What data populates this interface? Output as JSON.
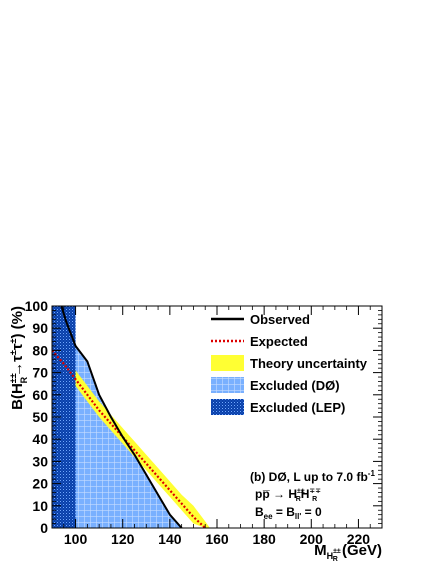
{
  "chart_data": {
    "type": "line",
    "xlabel": "M",
    "xlabel_subscript": "H",
    "xlabel_subscript2": "R",
    "xlabel_subsup": "±±",
    "xlabel_unit": " (GeV)",
    "ylabel": "B(H",
    "ylabel_sup": "±±",
    "ylabel_sub": "R",
    "ylabel_rest": "→τ",
    "ylabel_sup2": "±",
    "ylabel_rest2": "τ",
    "ylabel_sup3": "±",
    "ylabel_end": ") (%)",
    "xlim": [
      90,
      230
    ],
    "ylim": [
      0,
      100
    ],
    "x_ticks": [
      100,
      120,
      140,
      160,
      180,
      200,
      220
    ],
    "y_ticks": [
      0,
      10,
      20,
      30,
      40,
      50,
      60,
      70,
      80,
      90,
      100
    ],
    "grid": true,
    "legend_position": "top-right",
    "colors": {
      "observed": "#000000",
      "expected": "#dd0000",
      "theory_band": "#ffff33",
      "excluded_d0": "#6fa8ff",
      "excluded_lep": "#0a3fa8"
    },
    "legend": [
      {
        "label": "Observed",
        "kind": "line"
      },
      {
        "label": "Expected",
        "kind": "dotted"
      },
      {
        "label": "Theory uncertainty",
        "kind": "fill-yellow"
      },
      {
        "label": "Excluded (DØ)",
        "kind": "fill-blue"
      },
      {
        "label": "Excluded (LEP)",
        "kind": "fill-lep"
      }
    ],
    "lep_excluded_max_mass": 100,
    "series": [
      {
        "name": "Observed",
        "x": [
          94,
          96,
          100,
          105,
          110,
          115,
          120,
          125,
          130,
          135,
          140,
          145
        ],
        "y": [
          100,
          93,
          82,
          75,
          60,
          50,
          41,
          33,
          24,
          15,
          6,
          0
        ]
      },
      {
        "name": "Expected",
        "x": [
          90,
          95,
          100,
          105,
          110,
          115,
          120,
          125,
          130,
          135,
          140,
          145,
          150,
          155
        ],
        "y": [
          80,
          74,
          67,
          60,
          53,
          47,
          41,
          35,
          29,
          23,
          17,
          11,
          5,
          0
        ]
      },
      {
        "name": "Theory uncertainty",
        "x": [
          90,
          95,
          100,
          105,
          110,
          115,
          120,
          125,
          130,
          135,
          140,
          145,
          150,
          155,
          157
        ],
        "y_low": [
          77,
          71,
          64,
          57,
          50,
          44,
          38,
          32,
          26,
          20,
          14,
          8,
          2,
          0,
          0
        ],
        "y_high": [
          86,
          79,
          71,
          64,
          57,
          51,
          45,
          39,
          33,
          27,
          21,
          15,
          10,
          3,
          0
        ]
      }
    ],
    "annotations": [
      {
        "text": "(b) DØ, L up to 7.0 fb",
        "sup": "-1"
      },
      {
        "text": "pp̅ → H",
        "sup": "±±",
        "sub": "R",
        "tail": "H",
        "tail_sup": "∓∓",
        "tail_sub": "R"
      },
      {
        "text": "B",
        "sub": "ee",
        "mid": " = B",
        "sub2": "ll'",
        "tail": " = 0"
      }
    ]
  }
}
